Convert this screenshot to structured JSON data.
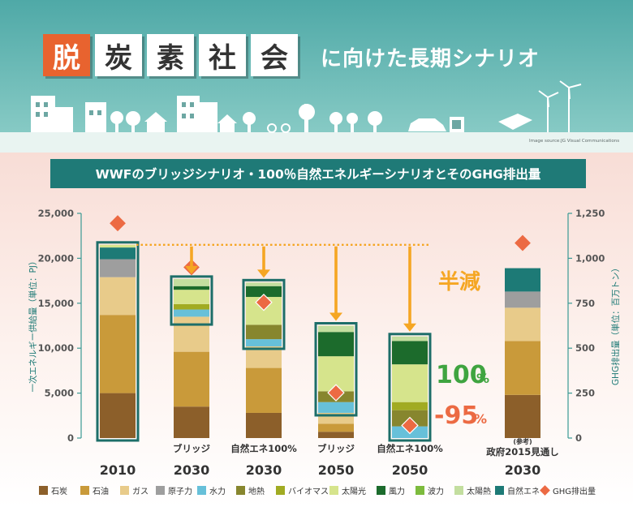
{
  "header": {
    "title_chars": [
      "脱",
      "炭",
      "素",
      "社",
      "会"
    ],
    "title_rest": "に向けた長期シナリオ",
    "image_credit": "Image source:JG Visual Communications"
  },
  "banner": "WWFのブリッジシナリオ・100％自然エネルギーシナリオとそのGHG排出量",
  "colors": {
    "石炭": "#8c5f2a",
    "石油": "#c99a3a",
    "ガス": "#e8cb8a",
    "原子力": "#9e9e9e",
    "水力": "#67c0d9",
    "地熱": "#87862e",
    "バイオマス": "#a1ab22",
    "太陽光": "#d6e48c",
    "風力": "#1c6b2c",
    "波力": "#7dbb3d",
    "太陽熱": "#c3de9f",
    "自然エネ": "#1d7a76",
    "GHG排出量": "#ec6a43"
  },
  "chart_data": {
    "type": "bar",
    "stacked": true,
    "y_left": {
      "label": "一次エネルギー供給量（単位：PJ）",
      "min": 0,
      "max": 25000,
      "ticks": [
        "0",
        "5,000",
        "10,000",
        "15,000",
        "20,000",
        "25,000"
      ]
    },
    "y_right": {
      "label": "GHG排出量（単位：百万トン）",
      "min": 0,
      "max": 1250,
      "ticks": [
        "0",
        "250",
        "500",
        "750",
        "1,000",
        "1,250"
      ]
    },
    "bars": [
      {
        "top_label": "",
        "year": "2010",
        "ghg": 1195,
        "segments": [
          [
            "石炭",
            5000
          ],
          [
            "石油",
            8700
          ],
          [
            "ガス",
            4200
          ],
          [
            "原子力",
            2000
          ],
          [
            "自然エネ",
            1300
          ],
          [
            "太陽光",
            300
          ]
        ]
      },
      {
        "top_label": "ブリッジ",
        "year": "2030",
        "ghg": 950,
        "segments": [
          [
            "石炭",
            3500
          ],
          [
            "石油",
            6100
          ],
          [
            "ガス",
            3900
          ],
          [
            "水力",
            800
          ],
          [
            "バイオマス",
            600
          ],
          [
            "太陽光",
            1600
          ],
          [
            "風力",
            400
          ],
          [
            "太陽熱",
            800
          ]
        ]
      },
      {
        "top_label": "自然エネ100%",
        "year": "2030",
        "ghg": 755,
        "segments": [
          [
            "石炭",
            2800
          ],
          [
            "石油",
            5000
          ],
          [
            "ガス",
            2400
          ],
          [
            "水力",
            800
          ],
          [
            "地熱",
            1600
          ],
          [
            "太陽光",
            3100
          ],
          [
            "風力",
            1200
          ],
          [
            "太陽熱",
            400
          ]
        ]
      },
      {
        "top_label": "ブリッジ",
        "year": "2050",
        "ghg": 252,
        "segments": [
          [
            "石炭",
            700
          ],
          [
            "石油",
            900
          ],
          [
            "ガス",
            1200
          ],
          [
            "水力",
            1200
          ],
          [
            "地熱",
            1200
          ],
          [
            "太陽光",
            3900
          ],
          [
            "風力",
            2700
          ],
          [
            "太陽熱",
            700
          ]
        ]
      },
      {
        "top_label": "自然エネ100%",
        "year": "2050",
        "ghg": 70,
        "segments": [
          [
            "水力",
            1300
          ],
          [
            "地熱",
            1800
          ],
          [
            "バイオマス",
            900
          ],
          [
            "太陽光",
            4200
          ],
          [
            "風力",
            2600
          ],
          [
            "太陽熱",
            500
          ]
        ]
      },
      {
        "top_label": "(参考)\n政府2015見通し",
        "year": "2030",
        "ghg": 1085,
        "segments": [
          [
            "石炭",
            4800
          ],
          [
            "石油",
            6000
          ],
          [
            "ガス",
            3700
          ],
          [
            "原子力",
            1800
          ],
          [
            "自然エネ",
            2600
          ]
        ]
      }
    ],
    "reference_level": 21500,
    "annotations": {
      "half": "半減",
      "renewable_pct": "100",
      "pct_sign": "%",
      "reduction_pct": "-95",
      "reduction_sign": "%"
    },
    "legend": [
      "石炭",
      "石油",
      "ガス",
      "原子力",
      "水力",
      "地熱",
      "バイオマス",
      "太陽光",
      "風力",
      "波力",
      "太陽熱",
      "自然エネ",
      "GHG排出量"
    ]
  }
}
